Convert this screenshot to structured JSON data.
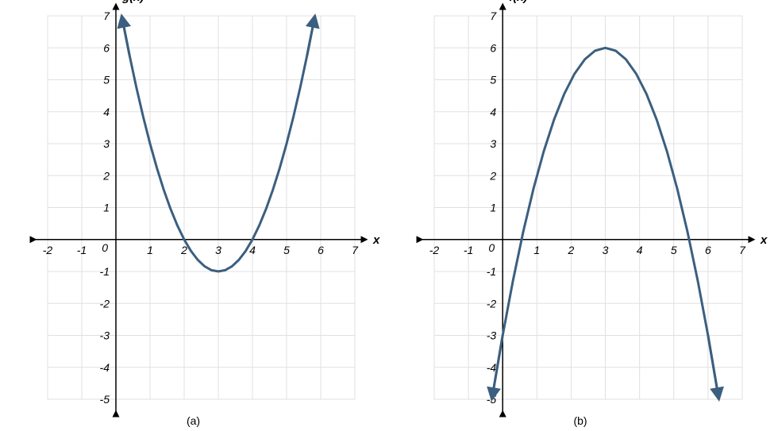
{
  "panels": [
    {
      "key": "a",
      "type": "line",
      "y_label": "g(x)",
      "x_label": "x",
      "caption": "(a)",
      "xlim": [
        -2,
        7
      ],
      "ylim": [
        -5,
        7
      ],
      "xticks": [
        -2,
        -1,
        0,
        1,
        2,
        3,
        4,
        5,
        6,
        7
      ],
      "yticks": [
        -5,
        -4,
        -3,
        -2,
        -1,
        1,
        2,
        3,
        4,
        5,
        6,
        7
      ],
      "xtick_labels": [
        "-2",
        "-1",
        "0",
        "1",
        "2",
        "3",
        "4",
        "5",
        "6",
        "7"
      ],
      "ytick_labels": [
        "-5",
        "-4",
        "-3",
        "-2",
        "-1",
        "1",
        "2",
        "3",
        "4",
        "5",
        "6",
        "7"
      ],
      "curve_color": "#3b5f7f",
      "grid_color": "#e0e0e0",
      "axis_color": "#000000",
      "background_color": "#ffffff",
      "label_fontsize": 14,
      "title_fontsize": 15,
      "line_width": 3,
      "equation": "y = (x-3)^2 - 1",
      "vertex": [
        3,
        -1
      ],
      "x_domain": [
        0.17,
        5.83
      ],
      "points": [
        [
          0.17,
          7.0
        ],
        [
          0.4,
          5.76
        ],
        [
          0.6,
          4.76
        ],
        [
          0.8,
          3.84
        ],
        [
          1.0,
          3.0
        ],
        [
          1.2,
          2.24
        ],
        [
          1.4,
          1.56
        ],
        [
          1.6,
          0.96
        ],
        [
          1.8,
          0.44
        ],
        [
          2.0,
          0.0
        ],
        [
          2.2,
          -0.36
        ],
        [
          2.4,
          -0.64
        ],
        [
          2.6,
          -0.84
        ],
        [
          2.8,
          -0.96
        ],
        [
          3.0,
          -1.0
        ],
        [
          3.2,
          -0.96
        ],
        [
          3.4,
          -0.84
        ],
        [
          3.6,
          -0.64
        ],
        [
          3.8,
          -0.36
        ],
        [
          4.0,
          0.0
        ],
        [
          4.2,
          0.44
        ],
        [
          4.4,
          0.96
        ],
        [
          4.6,
          1.56
        ],
        [
          4.8,
          2.24
        ],
        [
          5.0,
          3.0
        ],
        [
          5.2,
          3.84
        ],
        [
          5.4,
          4.76
        ],
        [
          5.6,
          5.76
        ],
        [
          5.83,
          7.0
        ]
      ],
      "start_arrow": true,
      "end_arrow": true
    },
    {
      "key": "b",
      "type": "line",
      "y_label": "f(x)",
      "x_label": "x",
      "caption": "(b)",
      "xlim": [
        -2,
        7
      ],
      "ylim": [
        -5,
        7
      ],
      "xticks": [
        -2,
        -1,
        0,
        1,
        2,
        3,
        4,
        5,
        6,
        7
      ],
      "yticks": [
        -5,
        -4,
        -3,
        -2,
        -1,
        1,
        2,
        3,
        4,
        5,
        6,
        7
      ],
      "xtick_labels": [
        "-2",
        "-1",
        "0",
        "1",
        "2",
        "3",
        "4",
        "5",
        "6",
        "7"
      ],
      "ytick_labels": [
        "-5",
        "-4",
        "-3",
        "-2",
        "-1",
        "1",
        "2",
        "3",
        "4",
        "5",
        "6",
        "7"
      ],
      "curve_color": "#3b5f7f",
      "grid_color": "#e0e0e0",
      "axis_color": "#000000",
      "background_color": "#ffffff",
      "label_fontsize": 14,
      "title_fontsize": 15,
      "line_width": 3,
      "equation": "y = -(x-3)^2 + 6",
      "vertex": [
        3,
        6
      ],
      "x_domain": [
        -0.317,
        6.317
      ],
      "points": [
        [
          -0.317,
          -5.0
        ],
        [
          0.0,
          -3.0
        ],
        [
          0.3,
          -1.29
        ],
        [
          0.6,
          0.24
        ],
        [
          0.9,
          1.59
        ],
        [
          1.2,
          2.76
        ],
        [
          1.5,
          3.75
        ],
        [
          1.8,
          4.56
        ],
        [
          2.1,
          5.19
        ],
        [
          2.4,
          5.64
        ],
        [
          2.7,
          5.91
        ],
        [
          3.0,
          6.0
        ],
        [
          3.3,
          5.91
        ],
        [
          3.6,
          5.64
        ],
        [
          3.9,
          5.19
        ],
        [
          4.2,
          4.56
        ],
        [
          4.5,
          3.75
        ],
        [
          4.8,
          2.76
        ],
        [
          5.1,
          1.59
        ],
        [
          5.4,
          0.24
        ],
        [
          5.7,
          -1.29
        ],
        [
          6.0,
          -3.0
        ],
        [
          6.317,
          -5.0
        ]
      ],
      "start_arrow": true,
      "end_arrow": true
    }
  ]
}
